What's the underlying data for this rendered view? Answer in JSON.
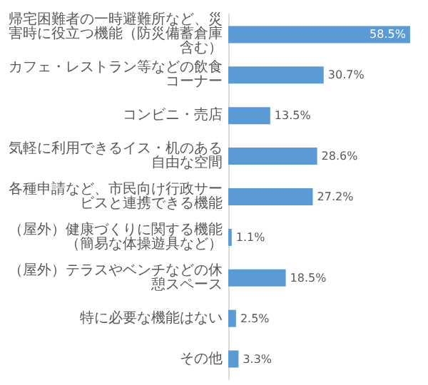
{
  "chart_data": {
    "type": "bar",
    "orientation": "horizontal",
    "color": "#5b9bd5",
    "categories": [
      "帰宅困難者の一時避難所など、災害時に役立つ機能（防災備蓄倉庫含む）",
      "カフェ・レストラン等などの飲食コーナー",
      "コンビニ・売店",
      "気軽に利用できるイス・机のある自由な空間",
      "各種申請など、市民向け行政サービスと連携できる機能",
      "（屋外）健康づくりに関する機能（簡易な体操遊具など）",
      "（屋外）テラスやベンチなどの休憩スペース",
      "特に必要な機能はない",
      "その他"
    ],
    "values": [
      58.5,
      30.7,
      13.5,
      28.6,
      27.2,
      1.1,
      18.5,
      2.5,
      3.3
    ],
    "value_labels": [
      "58.5%",
      "30.7%",
      "13.5%",
      "28.6%",
      "27.2%",
      "1.1%",
      "18.5%",
      "2.5%",
      "3.3%"
    ]
  }
}
